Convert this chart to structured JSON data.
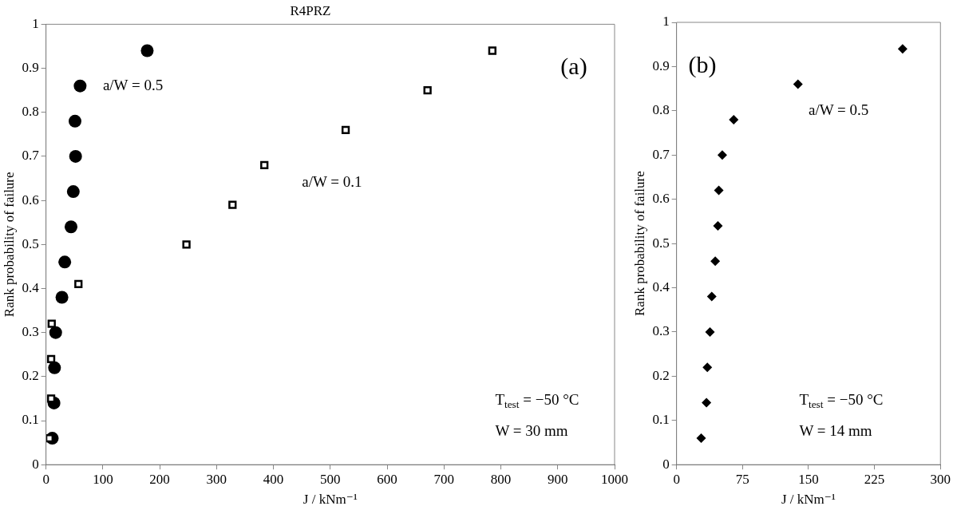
{
  "chart_data": [
    {
      "type": "scatter",
      "title": "R4PRZ",
      "xlabel": "J / kNm⁻¹",
      "ylabel": "Rank probability of failure",
      "xlim": [
        0,
        1000
      ],
      "xticks": [
        0,
        100,
        200,
        300,
        400,
        500,
        600,
        700,
        800,
        900,
        1000
      ],
      "ylim": [
        0,
        1
      ],
      "yticks": [
        0,
        0.1,
        0.2,
        0.3,
        0.4,
        0.5,
        0.6,
        0.7,
        0.8,
        0.9,
        1
      ],
      "grid": false,
      "legend": false,
      "series": [
        {
          "name": "a/W = 0.5",
          "marker": "circle",
          "color": "#000000",
          "x": [
            11,
            14,
            15,
            17,
            28,
            33,
            44,
            48,
            52,
            51,
            60,
            178
          ],
          "values": [
            0.06,
            0.14,
            0.22,
            0.3,
            0.38,
            0.46,
            0.54,
            0.62,
            0.7,
            0.78,
            0.86,
            0.94
          ]
        },
        {
          "name": "a/W = 0.1",
          "marker": "square",
          "color": "#000000",
          "x": [
            6,
            9,
            9,
            10,
            57,
            247,
            328,
            384,
            527,
            671,
            785
          ],
          "values": [
            0.06,
            0.15,
            0.24,
            0.32,
            0.41,
            0.5,
            0.59,
            0.68,
            0.76,
            0.85,
            0.94
          ]
        }
      ],
      "annotations": [
        "(a)",
        "T$_{test}$ = −50 °C",
        "W = 30 mm"
      ]
    },
    {
      "type": "scatter",
      "xlabel": "J / kNm⁻¹",
      "ylabel": "Rank probability of failure",
      "xlim": [
        0,
        300
      ],
      "xticks": [
        0,
        75,
        150,
        225,
        300
      ],
      "ylim": [
        0,
        1
      ],
      "yticks": [
        0,
        0.1,
        0.2,
        0.3,
        0.4,
        0.5,
        0.6,
        0.7,
        0.8,
        0.9,
        1
      ],
      "grid": false,
      "legend": false,
      "series": [
        {
          "name": "a/W = 0.5",
          "marker": "diamond",
          "color": "#000000",
          "x": [
            28,
            34,
            35,
            38,
            40,
            44,
            47,
            48,
            52,
            65,
            138,
            257
          ],
          "values": [
            0.06,
            0.14,
            0.22,
            0.3,
            0.38,
            0.46,
            0.54,
            0.62,
            0.7,
            0.78,
            0.86,
            0.94
          ]
        }
      ],
      "annotations": [
        "(b)",
        "T$_{test}$ = −50 °C",
        "W = 14 mm"
      ]
    }
  ]
}
